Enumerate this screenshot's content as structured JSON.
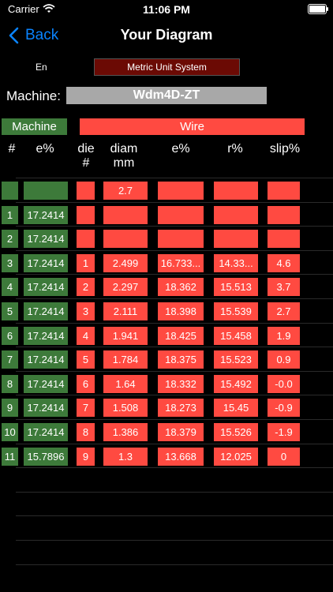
{
  "status_bar": {
    "carrier": "Carrier",
    "time": "11:06 PM"
  },
  "nav": {
    "back_label": "Back",
    "title": "Your Diagram"
  },
  "settings": {
    "language": "En",
    "unit_system": "Metric Unit System"
  },
  "machine": {
    "label": "Machine:",
    "name": "Wdm4D-ZT"
  },
  "section_headers": {
    "machine": "Machine",
    "wire": "Wire"
  },
  "columns": {
    "index": "#",
    "machine_e": "e%",
    "die_line1": "die",
    "die_line2": "#",
    "diam_line1": "diam",
    "diam_line2": "mm",
    "wire_e": "e%",
    "r": "r%",
    "slip": "slip%"
  },
  "initial_row": {
    "diam": "2.7"
  },
  "rows": [
    {
      "n": "1",
      "me": "17.2414",
      "die": "",
      "diam": "",
      "we": "",
      "r": "",
      "slip": ""
    },
    {
      "n": "2",
      "me": "17.2414",
      "die": "",
      "diam": "",
      "we": "",
      "r": "",
      "slip": ""
    },
    {
      "n": "3",
      "me": "17.2414",
      "die": "1",
      "diam": "2.499",
      "we": "16.733...",
      "r": "14.33...",
      "slip": "4.6"
    },
    {
      "n": "4",
      "me": "17.2414",
      "die": "2",
      "diam": "2.297",
      "we": "18.362",
      "r": "15.513",
      "slip": "3.7"
    },
    {
      "n": "5",
      "me": "17.2414",
      "die": "3",
      "diam": "2.111",
      "we": "18.398",
      "r": "15.539",
      "slip": "2.7"
    },
    {
      "n": "6",
      "me": "17.2414",
      "die": "4",
      "diam": "1.941",
      "we": "18.425",
      "r": "15.458",
      "slip": "1.9"
    },
    {
      "n": "7",
      "me": "17.2414",
      "die": "5",
      "diam": "1.784",
      "we": "18.375",
      "r": "15.523",
      "slip": "0.9"
    },
    {
      "n": "8",
      "me": "17.2414",
      "die": "6",
      "diam": "1.64",
      "we": "18.332",
      "r": "15.492",
      "slip": "-0.0"
    },
    {
      "n": "9",
      "me": "17.2414",
      "die": "7",
      "diam": "1.508",
      "we": "18.273",
      "r": "15.45",
      "slip": "-0.9"
    },
    {
      "n": "10",
      "me": "17.2414",
      "die": "8",
      "diam": "1.386",
      "we": "18.379",
      "r": "15.526",
      "slip": "-1.9"
    },
    {
      "n": "11",
      "me": "15.7896",
      "die": "9",
      "diam": "1.3",
      "we": "13.668",
      "r": "12.025",
      "slip": "0"
    }
  ],
  "colors": {
    "machine_green": "#3d7a3a",
    "wire_red": "#ff4a41",
    "unit_button": "#6b0a04",
    "accent_blue": "#0a84ff"
  }
}
